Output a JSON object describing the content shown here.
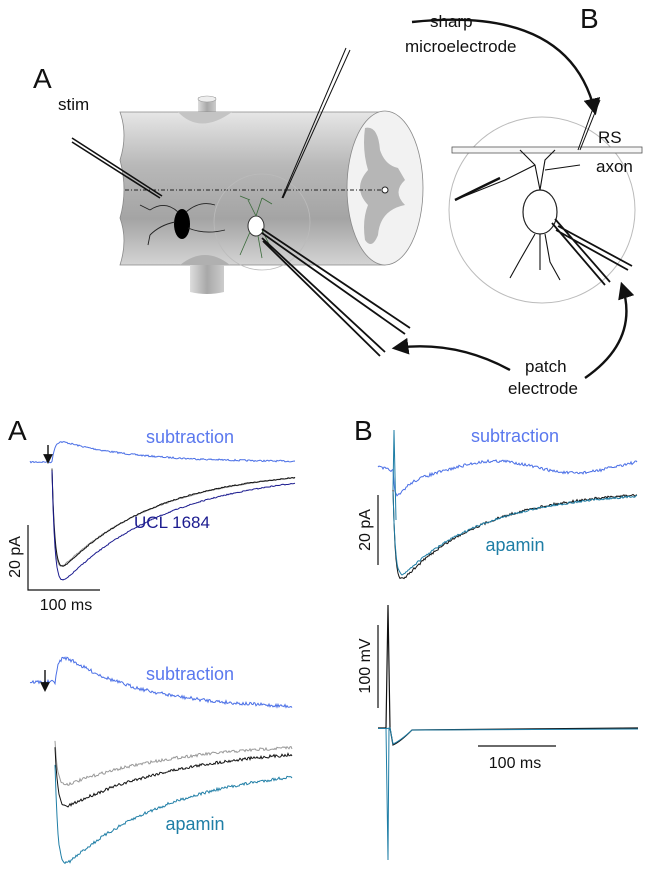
{
  "diagram": {
    "panel_a": "A",
    "panel_b": "B",
    "stim": "stim",
    "sharp": [
      "sharp",
      "microelectrode"
    ],
    "rs": "RS",
    "axon": "axon",
    "patch": [
      "patch",
      "electrode"
    ]
  },
  "traces": {
    "panel_a": {
      "label": "A",
      "top": {
        "subtraction": "subtraction",
        "drug": "UCL 1684",
        "y_scale": "20 pA",
        "x_scale": "100 ms"
      },
      "bottom": {
        "subtraction": "subtraction",
        "drug": "apamin"
      }
    },
    "panel_b": {
      "label": "B",
      "current": {
        "subtraction": "subtraction",
        "drug": "apamin",
        "y_scale": "20 pA"
      },
      "voltage": {
        "y_scale": "100 mV",
        "x_scale": "100 ms"
      }
    }
  }
}
